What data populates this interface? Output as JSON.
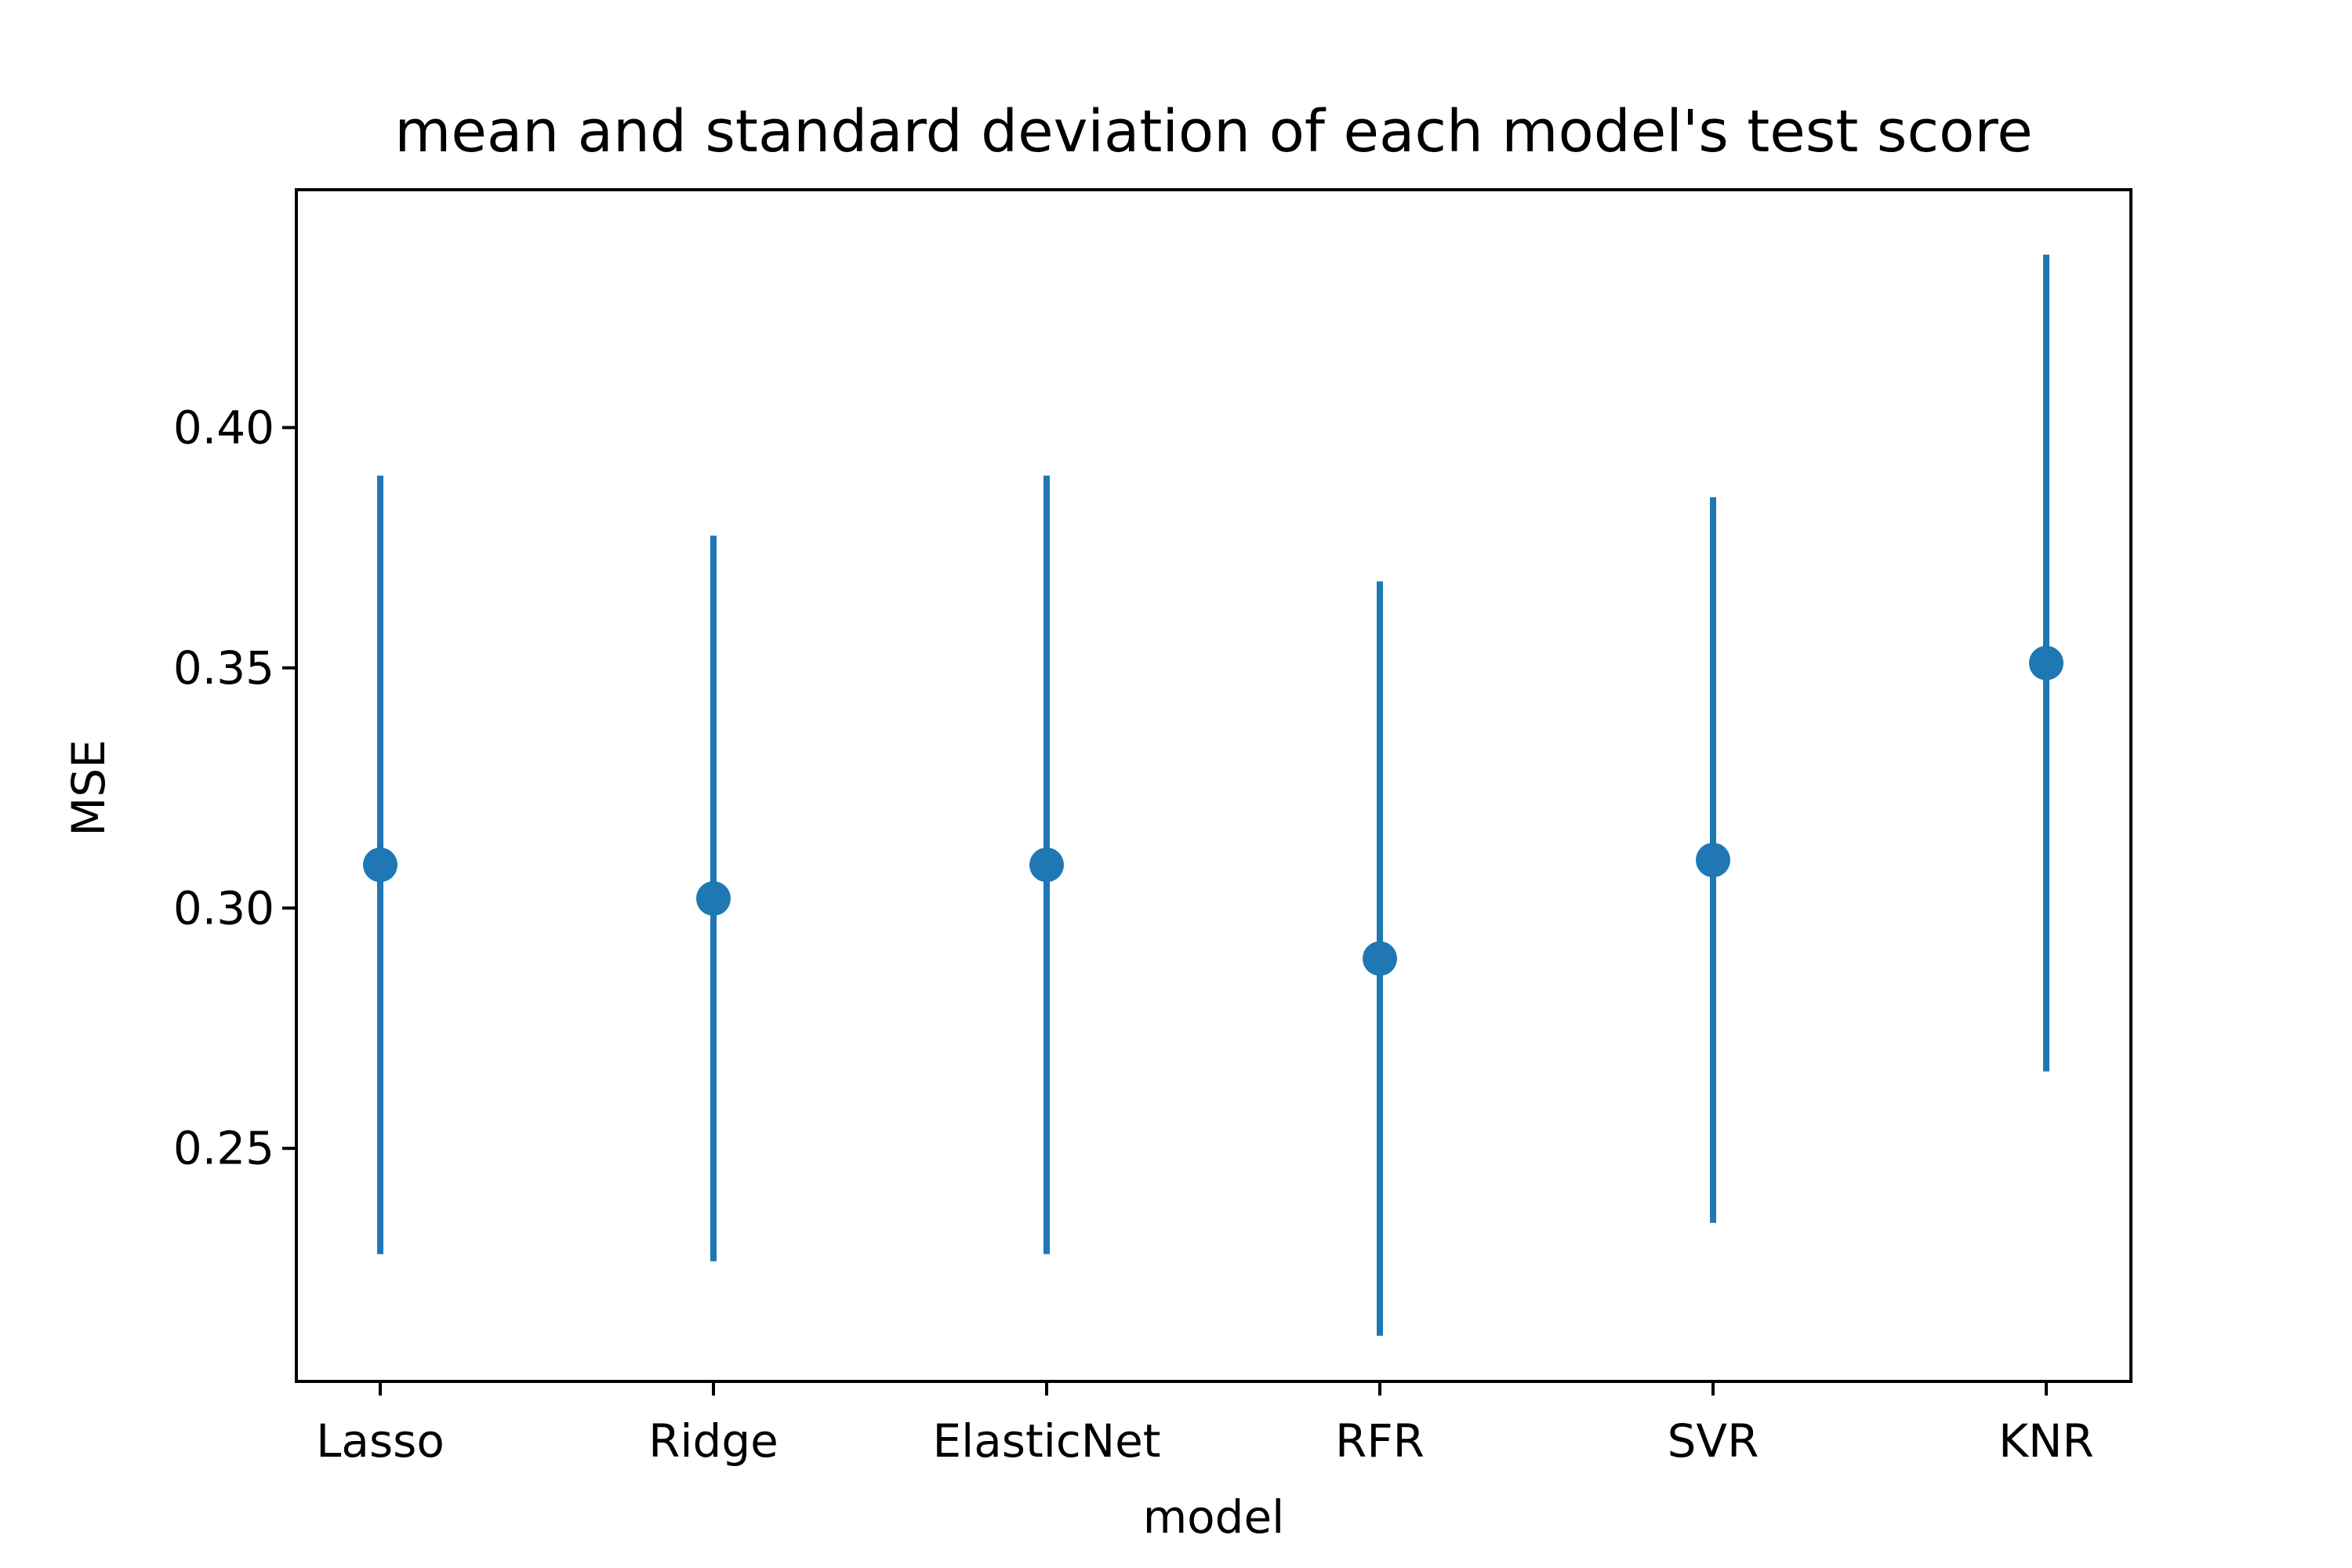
{
  "chart_data": {
    "type": "scatter",
    "title": "mean and standard deviation of each model's test score",
    "xlabel": "model",
    "ylabel": "MSE",
    "categories": [
      "Lasso",
      "Ridge",
      "ElasticNet",
      "RFR",
      "SVR",
      "KNR"
    ],
    "means": [
      0.309,
      0.302,
      0.309,
      0.2895,
      0.31,
      0.351
    ],
    "std": [
      0.081,
      0.0755,
      0.081,
      0.0785,
      0.0755,
      0.085
    ],
    "ylim": [
      0.2015,
      0.4495
    ],
    "y_ticks": [
      0.25,
      0.3,
      0.35,
      0.4
    ],
    "y_tick_labels": [
      "0.25",
      "0.30",
      "0.35",
      "0.40"
    ],
    "grid": false,
    "legend": "none",
    "series_color": "#1f77b4",
    "axis_color": "#000000",
    "background": "#ffffff"
  }
}
